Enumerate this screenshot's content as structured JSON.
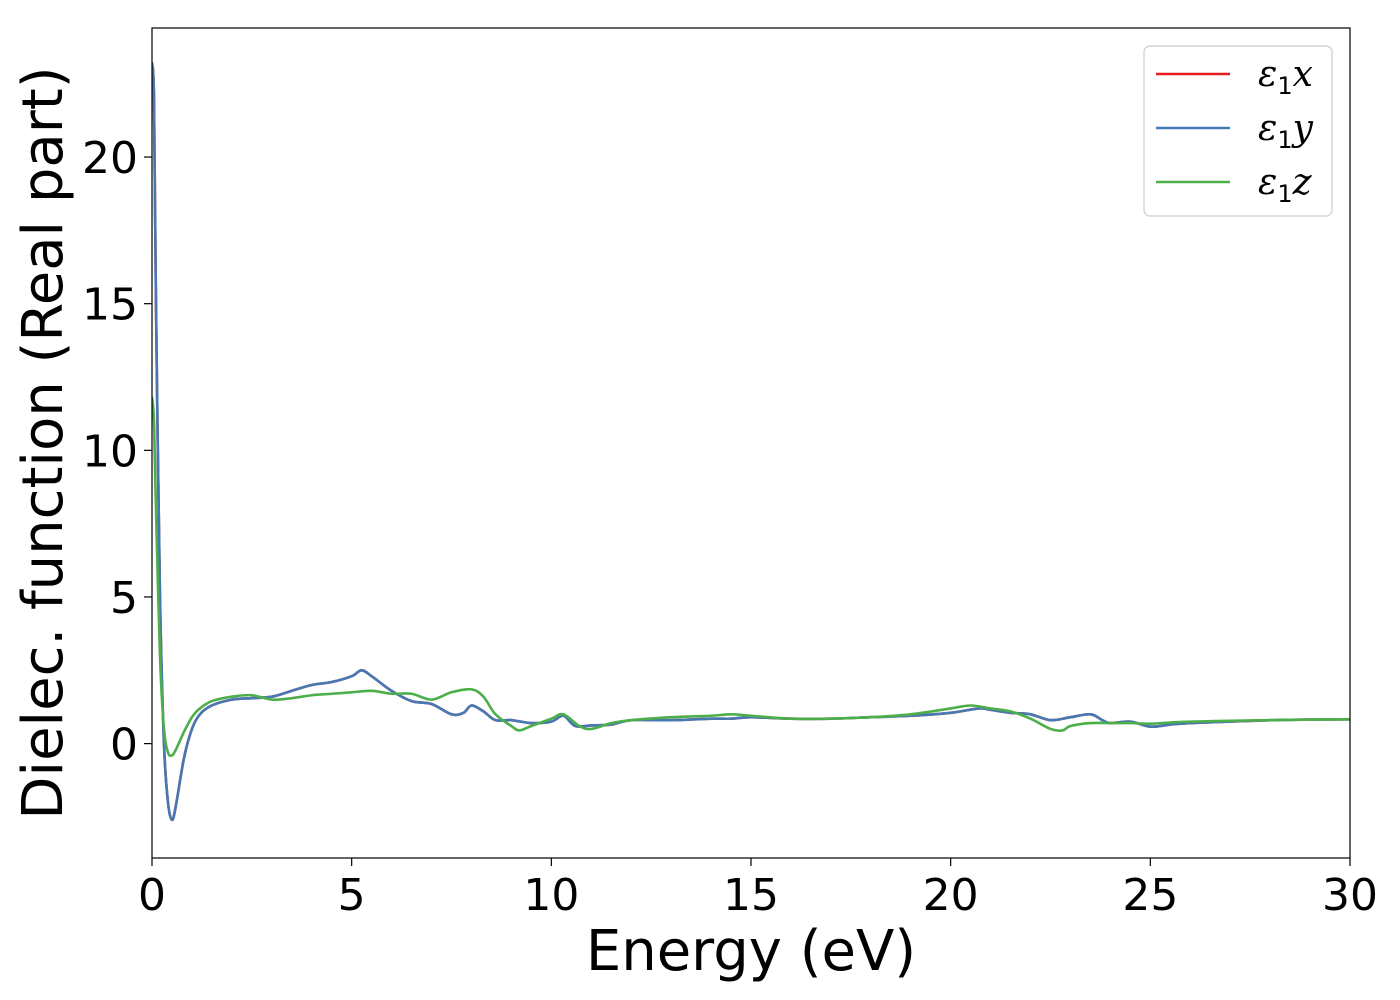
{
  "chart_data": {
    "type": "line",
    "xlabel": "Energy (eV)",
    "ylabel": "Dielec. function (Real part)",
    "xlim": [
      0,
      30
    ],
    "ylim": [
      -3.9,
      24.4
    ],
    "xticks": [
      0,
      5,
      10,
      15,
      20,
      25,
      30
    ],
    "yticks": [
      0,
      5,
      10,
      15,
      20
    ],
    "grid": false,
    "legend_position": "top-right",
    "series": [
      {
        "name": "ε1x",
        "legend": {
          "base": "ε",
          "sub": "1",
          "suffix": "x"
        },
        "color": "#e41a1c",
        "x": [
          0,
          0.05,
          0.1,
          0.2,
          0.3,
          0.4,
          0.5,
          0.6,
          0.8,
          1.0,
          1.2,
          1.5,
          2.0,
          2.5,
          3.0,
          3.5,
          4.0,
          4.5,
          5.0,
          5.25,
          5.5,
          6.0,
          6.5,
          7.0,
          7.5,
          7.8,
          8.0,
          8.3,
          8.6,
          9.0,
          9.5,
          10.0,
          10.3,
          10.6,
          11.0,
          11.5,
          12.0,
          13.0,
          14.0,
          14.5,
          15.0,
          16.0,
          17.0,
          18.0,
          19.0,
          20.0,
          20.7,
          21.0,
          21.5,
          22.0,
          22.5,
          23.0,
          23.5,
          23.8,
          24.0,
          24.5,
          25.0,
          25.5,
          26.0,
          27.0,
          28.0,
          29.0,
          30.0
        ],
        "y": [
          23.2,
          22.0,
          15.0,
          5.0,
          0.0,
          -2.0,
          -2.6,
          -2.1,
          -0.5,
          0.5,
          1.0,
          1.3,
          1.5,
          1.55,
          1.6,
          1.8,
          2.0,
          2.1,
          2.3,
          2.5,
          2.3,
          1.8,
          1.45,
          1.35,
          1.0,
          1.05,
          1.3,
          1.1,
          0.8,
          0.8,
          0.7,
          0.75,
          0.95,
          0.6,
          0.62,
          0.65,
          0.8,
          0.8,
          0.85,
          0.85,
          0.9,
          0.85,
          0.85,
          0.9,
          0.95,
          1.05,
          1.2,
          1.15,
          1.05,
          1.0,
          0.8,
          0.9,
          1.0,
          0.8,
          0.7,
          0.75,
          0.58,
          0.65,
          0.7,
          0.75,
          0.8,
          0.82,
          0.83
        ]
      },
      {
        "name": "ε1y",
        "legend": {
          "base": "ε",
          "sub": "1",
          "suffix": "y"
        },
        "color": "#4479b4",
        "x": [
          0,
          0.05,
          0.1,
          0.2,
          0.3,
          0.4,
          0.5,
          0.6,
          0.8,
          1.0,
          1.2,
          1.5,
          2.0,
          2.5,
          3.0,
          3.5,
          4.0,
          4.5,
          5.0,
          5.25,
          5.5,
          6.0,
          6.5,
          7.0,
          7.5,
          7.8,
          8.0,
          8.3,
          8.6,
          9.0,
          9.5,
          10.0,
          10.3,
          10.6,
          11.0,
          11.5,
          12.0,
          13.0,
          14.0,
          14.5,
          15.0,
          16.0,
          17.0,
          18.0,
          19.0,
          20.0,
          20.7,
          21.0,
          21.5,
          22.0,
          22.5,
          23.0,
          23.5,
          23.8,
          24.0,
          24.5,
          25.0,
          25.5,
          26.0,
          27.0,
          28.0,
          29.0,
          30.0
        ],
        "y": [
          23.2,
          22.0,
          15.0,
          5.0,
          0.0,
          -2.0,
          -2.6,
          -2.1,
          -0.5,
          0.5,
          1.0,
          1.3,
          1.5,
          1.55,
          1.6,
          1.8,
          2.0,
          2.1,
          2.3,
          2.5,
          2.3,
          1.8,
          1.45,
          1.35,
          1.0,
          1.05,
          1.3,
          1.1,
          0.8,
          0.8,
          0.7,
          0.75,
          0.95,
          0.6,
          0.62,
          0.65,
          0.8,
          0.8,
          0.85,
          0.85,
          0.9,
          0.85,
          0.85,
          0.9,
          0.95,
          1.05,
          1.2,
          1.15,
          1.05,
          1.0,
          0.8,
          0.9,
          1.0,
          0.8,
          0.7,
          0.75,
          0.58,
          0.65,
          0.7,
          0.75,
          0.8,
          0.82,
          0.83
        ]
      },
      {
        "name": "ε1z",
        "legend": {
          "base": "ε",
          "sub": "1",
          "suffix": "z"
        },
        "color": "#4daf4a",
        "x": [
          0,
          0.05,
          0.1,
          0.2,
          0.3,
          0.4,
          0.5,
          0.6,
          0.8,
          1.0,
          1.2,
          1.5,
          2.0,
          2.5,
          3.0,
          3.5,
          4.0,
          4.5,
          5.0,
          5.5,
          6.0,
          6.5,
          7.0,
          7.5,
          8.0,
          8.3,
          8.6,
          9.0,
          9.2,
          9.5,
          10.0,
          10.3,
          10.7,
          11.0,
          11.5,
          12.0,
          13.0,
          14.0,
          14.5,
          15.0,
          16.0,
          17.0,
          18.0,
          19.0,
          20.0,
          20.5,
          21.0,
          21.5,
          22.0,
          22.5,
          22.8,
          23.0,
          23.5,
          24.0,
          24.5,
          25.0,
          25.5,
          26.0,
          27.0,
          28.0,
          29.0,
          30.0
        ],
        "y": [
          11.8,
          11.0,
          8.0,
          3.0,
          0.5,
          -0.3,
          -0.4,
          -0.2,
          0.4,
          0.9,
          1.2,
          1.45,
          1.6,
          1.65,
          1.5,
          1.55,
          1.65,
          1.7,
          1.75,
          1.8,
          1.7,
          1.7,
          1.5,
          1.75,
          1.85,
          1.6,
          1.0,
          0.6,
          0.45,
          0.6,
          0.85,
          1.0,
          0.6,
          0.5,
          0.7,
          0.8,
          0.9,
          0.95,
          1.0,
          0.95,
          0.85,
          0.85,
          0.9,
          1.0,
          1.2,
          1.3,
          1.2,
          1.1,
          0.85,
          0.5,
          0.45,
          0.6,
          0.7,
          0.7,
          0.7,
          0.68,
          0.72,
          0.75,
          0.78,
          0.8,
          0.82,
          0.83
        ]
      }
    ]
  }
}
